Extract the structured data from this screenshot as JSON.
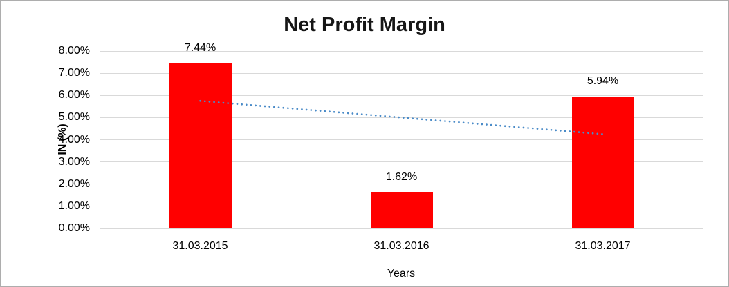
{
  "frame": {
    "background": "#ffffff",
    "border_color": "#adadad"
  },
  "chart_data": {
    "type": "bar",
    "title": "Net Profit Margin",
    "xlabel": "Years",
    "ylabel": "IN (%)",
    "categories": [
      "31.03.2015",
      "31.03.2016",
      "31.03.2017"
    ],
    "series": [
      {
        "name": "Net Profit Margin",
        "values": [
          7.44,
          1.62,
          5.94
        ]
      }
    ],
    "data_labels": [
      "7.44%",
      "1.62%",
      "5.94%"
    ],
    "ylim": [
      0,
      8
    ],
    "ytick_step": 1,
    "ytick_labels": [
      "0.00%",
      "1.00%",
      "2.00%",
      "3.00%",
      "4.00%",
      "5.00%",
      "6.00%",
      "7.00%",
      "8.00%"
    ],
    "grid": true,
    "legend": "none",
    "bar_color": "#ff0000",
    "gridline_color": "#d9d9d9",
    "trendline": {
      "type": "linear",
      "style": "dotted",
      "color": "#4a8bc8",
      "start_value": 5.75,
      "end_value": 4.25
    }
  }
}
